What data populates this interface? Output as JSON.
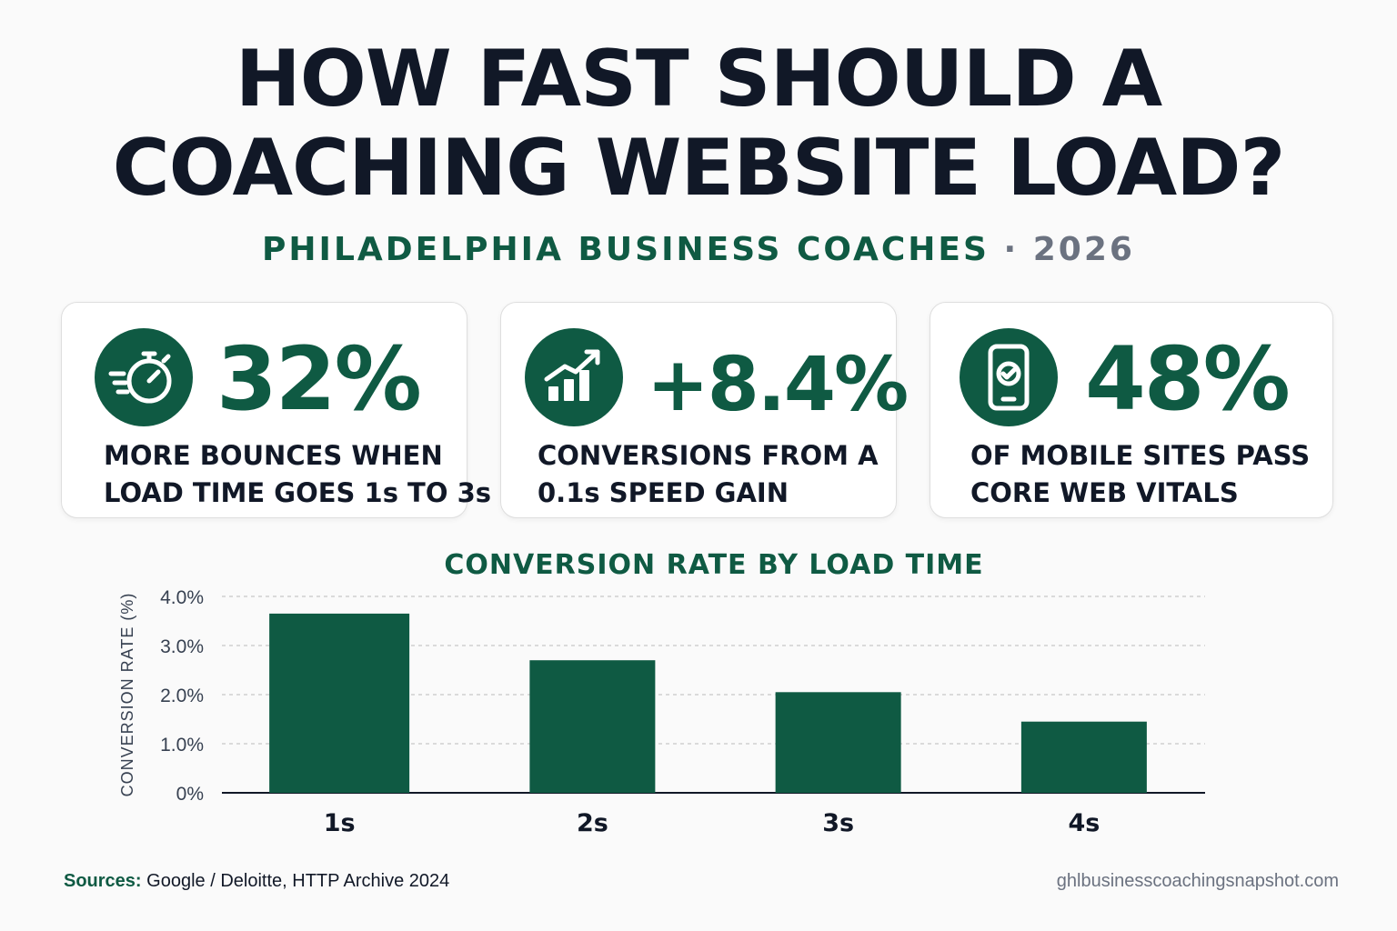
{
  "header": {
    "title_line1": "HOW FAST SHOULD A",
    "title_line2": "COACHING WEBSITE LOAD?",
    "subtitle_org": "PHILADELPHIA BUSINESS COACHES",
    "subtitle_sep": "·",
    "subtitle_year": "2026"
  },
  "cards": [
    {
      "icon": "stopwatch-icon",
      "stat": "32%",
      "desc_line1": "MORE BOUNCES WHEN",
      "desc_line2": "LOAD TIME GOES 1s TO 3s"
    },
    {
      "icon": "growth-chart-icon",
      "stat": "+8.4%",
      "desc_line1": "CONVERSIONS FROM A",
      "desc_line2": "0.1s SPEED GAIN"
    },
    {
      "icon": "mobile-check-icon",
      "stat": "48%",
      "desc_line1": "OF MOBILE SITES PASS",
      "desc_line2": "CORE WEB VITALS"
    }
  ],
  "colors": {
    "accent": "#0f5a43",
    "title": "#111827",
    "muted": "#6b7280",
    "background": "#fafafa"
  },
  "chart_data": {
    "type": "bar",
    "title": "CONVERSION RATE BY LOAD TIME",
    "xlabel": "",
    "ylabel": "CONVERSION RATE (%)",
    "categories": [
      "1s",
      "2s",
      "3s",
      "4s"
    ],
    "values": [
      3.65,
      2.7,
      2.05,
      1.45
    ],
    "ylim": [
      0,
      4
    ],
    "yticks": [
      0,
      1,
      2,
      3,
      4
    ],
    "ytick_labels": [
      "0%",
      "1.0%",
      "2.0%",
      "3.0%",
      "4.0%"
    ],
    "grid": true,
    "bar_color": "#0f5a43"
  },
  "footer": {
    "sources_label": "Sources:",
    "sources_text": "Google / Deloitte, HTTP Archive 2024",
    "site": "ghlbusinesscoachingsnapshot.com"
  }
}
